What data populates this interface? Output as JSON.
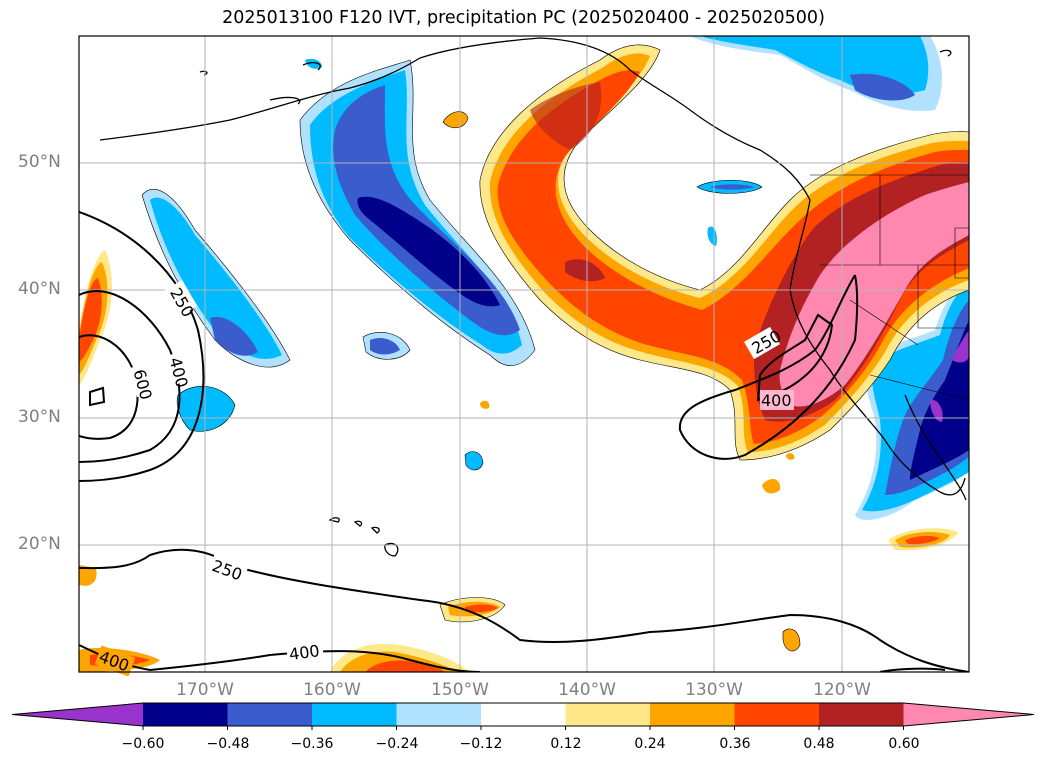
{
  "title": "2025013100 F120 IVT, precipitation PC (2025020400 - 2025020500)",
  "map": {
    "lat_labels": [
      "50°N",
      "40°N",
      "30°N",
      "20°N"
    ],
    "lon_labels": [
      "170°W",
      "160°W",
      "150°W",
      "140°W",
      "130°W",
      "120°W"
    ],
    "contour_labels": [
      "250",
      "400",
      "600",
      "250",
      "400",
      "250",
      "400"
    ]
  },
  "colorbar": {
    "ticks": [
      "−0.60",
      "−0.48",
      "−0.36",
      "−0.24",
      "−0.12",
      "0.12",
      "0.24",
      "0.36",
      "0.48",
      "0.60"
    ],
    "colors": [
      "#9933cc",
      "#00008b",
      "#3a5ccc",
      "#00bbff",
      "#b0e2ff",
      "#ffffff",
      "#ffe88a",
      "#ffa500",
      "#ff4500",
      "#b22222",
      "#ff88b0"
    ]
  }
}
